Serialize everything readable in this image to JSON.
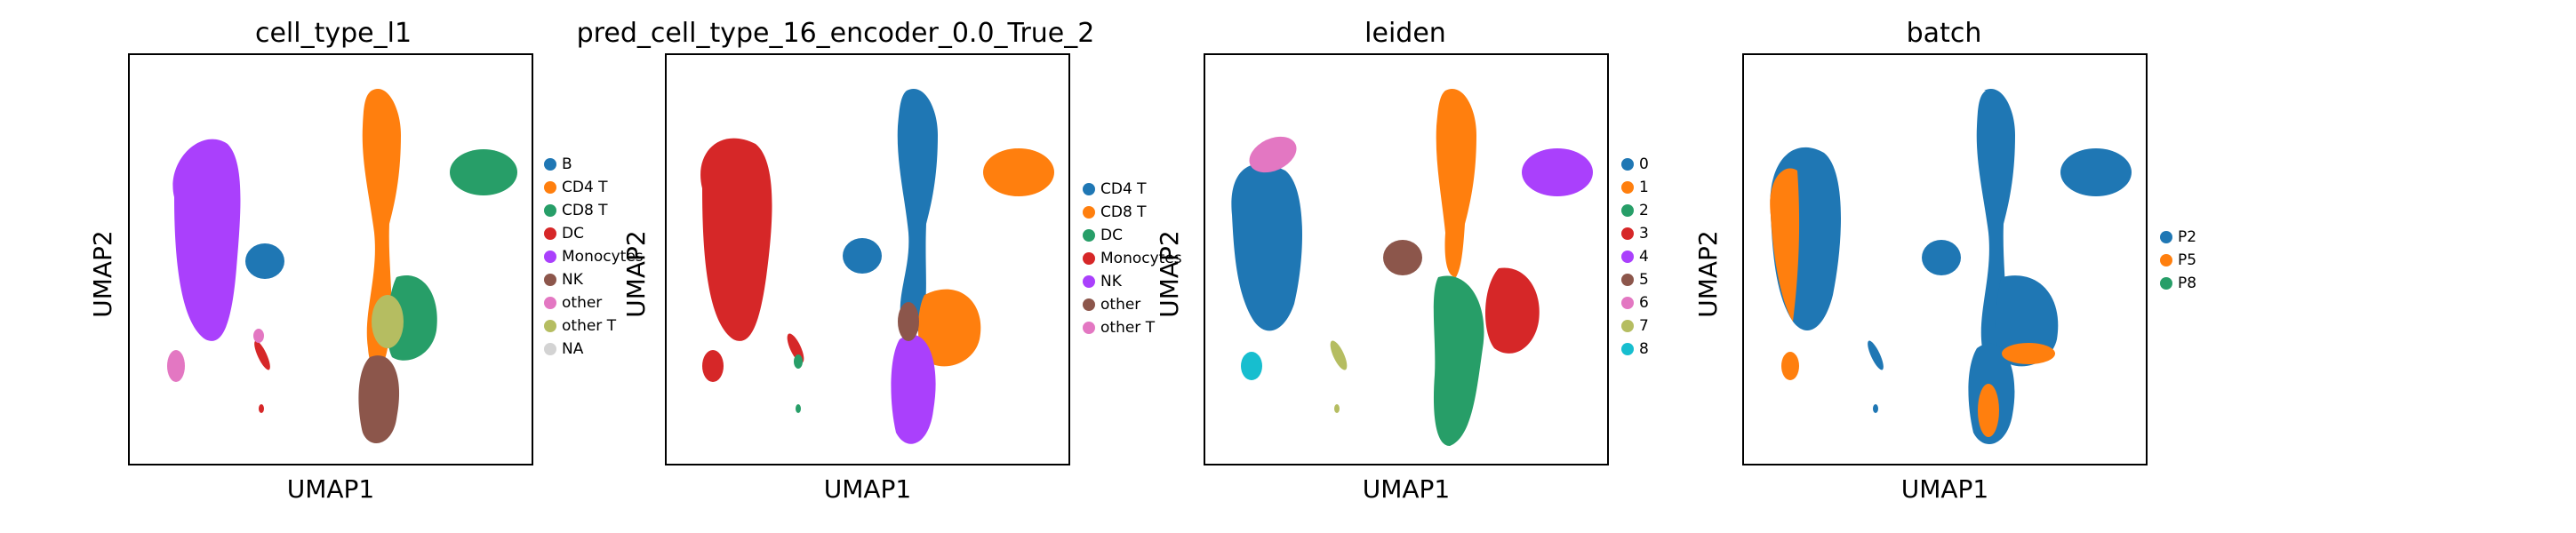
{
  "figure": {
    "xlabel": "UMAP1",
    "ylabel": "UMAP2"
  },
  "panels": [
    {
      "title": "cell_type_l1",
      "legend": [
        {
          "label": "B",
          "color": "#1f77b4"
        },
        {
          "label": "CD4 T",
          "color": "#ff7f0e"
        },
        {
          "label": "CD8 T",
          "color": "#279e68"
        },
        {
          "label": "DC",
          "color": "#d62728"
        },
        {
          "label": "Monocytes",
          "color": "#aa40fc"
        },
        {
          "label": "NK",
          "color": "#8c564b"
        },
        {
          "label": "other",
          "color": "#e377c2"
        },
        {
          "label": "other T",
          "color": "#b5bd61"
        },
        {
          "label": "NA",
          "color": "#d3d3d3"
        }
      ]
    },
    {
      "title": "pred_cell_type_16_encoder_0.0_True_2",
      "legend": [
        {
          "label": "CD4 T",
          "color": "#1f77b4"
        },
        {
          "label": "CD8 T",
          "color": "#ff7f0e"
        },
        {
          "label": "DC",
          "color": "#279e68"
        },
        {
          "label": "Monocytes",
          "color": "#d62728"
        },
        {
          "label": "NK",
          "color": "#aa40fc"
        },
        {
          "label": "other",
          "color": "#8c564b"
        },
        {
          "label": "other T",
          "color": "#e377c2"
        }
      ]
    },
    {
      "title": "leiden",
      "legend": [
        {
          "label": "0",
          "color": "#1f77b4"
        },
        {
          "label": "1",
          "color": "#ff7f0e"
        },
        {
          "label": "2",
          "color": "#279e68"
        },
        {
          "label": "3",
          "color": "#d62728"
        },
        {
          "label": "4",
          "color": "#aa40fc"
        },
        {
          "label": "5",
          "color": "#8c564b"
        },
        {
          "label": "6",
          "color": "#e377c2"
        },
        {
          "label": "7",
          "color": "#b5bd61"
        },
        {
          "label": "8",
          "color": "#17becf"
        }
      ]
    },
    {
      "title": "batch",
      "legend": [
        {
          "label": "P2",
          "color": "#1f77b4"
        },
        {
          "label": "P5",
          "color": "#ff7f0e"
        },
        {
          "label": "P8",
          "color": "#279e68"
        }
      ]
    }
  ],
  "chart_data": [
    {
      "type": "scatter",
      "title": "cell_type_l1",
      "xlabel": "UMAP1",
      "ylabel": "UMAP2",
      "grid": false,
      "legend_position": "right",
      "series": [
        {
          "name": "B",
          "color": "#1f77b4"
        },
        {
          "name": "CD4 T",
          "color": "#ff7f0e"
        },
        {
          "name": "CD8 T",
          "color": "#279e68"
        },
        {
          "name": "DC",
          "color": "#d62728"
        },
        {
          "name": "Monocytes",
          "color": "#aa40fc"
        },
        {
          "name": "NK",
          "color": "#8c564b"
        },
        {
          "name": "other",
          "color": "#e377c2"
        },
        {
          "name": "other T",
          "color": "#b5bd61"
        },
        {
          "name": "NA",
          "color": "#d3d3d3"
        }
      ]
    },
    {
      "type": "scatter",
      "title": "pred_cell_type_16_encoder_0.0_True_2",
      "xlabel": "UMAP1",
      "ylabel": "UMAP2",
      "grid": false,
      "legend_position": "right",
      "series": [
        {
          "name": "CD4 T",
          "color": "#1f77b4"
        },
        {
          "name": "CD8 T",
          "color": "#ff7f0e"
        },
        {
          "name": "DC",
          "color": "#279e68"
        },
        {
          "name": "Monocytes",
          "color": "#d62728"
        },
        {
          "name": "NK",
          "color": "#aa40fc"
        },
        {
          "name": "other",
          "color": "#8c564b"
        },
        {
          "name": "other T",
          "color": "#e377c2"
        }
      ]
    },
    {
      "type": "scatter",
      "title": "leiden",
      "xlabel": "UMAP1",
      "ylabel": "UMAP2",
      "grid": false,
      "legend_position": "right",
      "series": [
        {
          "name": "0",
          "color": "#1f77b4"
        },
        {
          "name": "1",
          "color": "#ff7f0e"
        },
        {
          "name": "2",
          "color": "#279e68"
        },
        {
          "name": "3",
          "color": "#d62728"
        },
        {
          "name": "4",
          "color": "#aa40fc"
        },
        {
          "name": "5",
          "color": "#8c564b"
        },
        {
          "name": "6",
          "color": "#e377c2"
        },
        {
          "name": "7",
          "color": "#b5bd61"
        },
        {
          "name": "8",
          "color": "#17becf"
        }
      ]
    },
    {
      "type": "scatter",
      "title": "batch",
      "xlabel": "UMAP1",
      "ylabel": "UMAP2",
      "grid": false,
      "legend_position": "right",
      "series": [
        {
          "name": "P2",
          "color": "#1f77b4"
        },
        {
          "name": "P5",
          "color": "#ff7f0e"
        },
        {
          "name": "P8",
          "color": "#279e68"
        }
      ]
    }
  ]
}
